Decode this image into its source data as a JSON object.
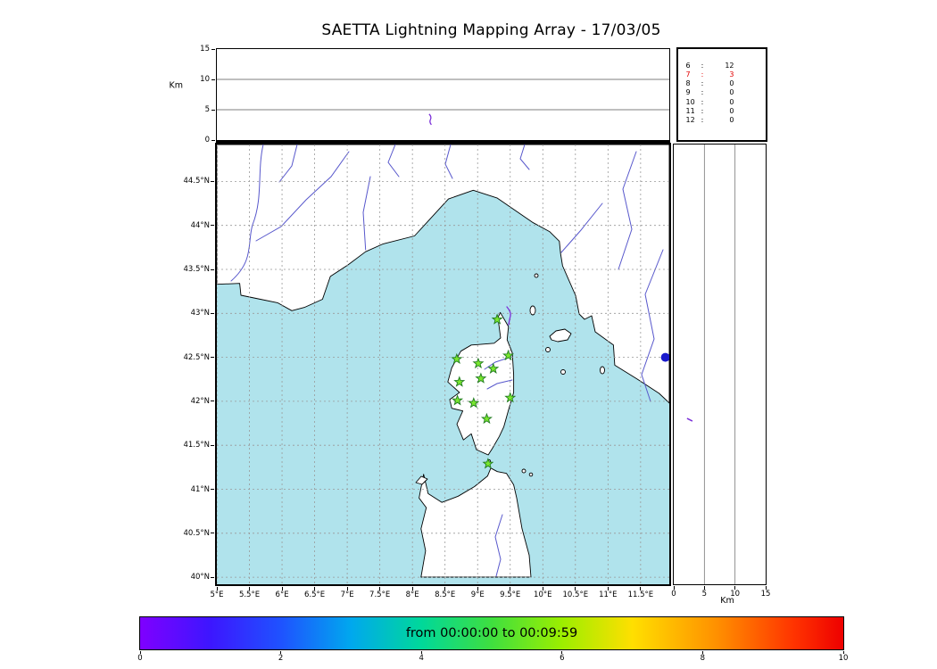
{
  "title": "SAETTA Lightning Mapping Array - 17/03/05",
  "chart_data": {
    "type": "map",
    "title": "SAETTA Lightning Mapping Array - 17/03/05",
    "colorbar": {
      "label": "from 00:00:00 to 00:09:59",
      "ticks": [
        0,
        2,
        4,
        6,
        8,
        10
      ],
      "range": [
        0,
        10
      ],
      "gradient_stops": [
        "#7f00ff 0%",
        "#3d16ff 10%",
        "#1f52ff 20%",
        "#00a8ee 30%",
        "#00d89a 40%",
        "#3fdf3f 50%",
        "#9cee00 60%",
        "#ffdf00 70%",
        "#ff9000 82%",
        "#ff3300 93%",
        "#ee0000 100%"
      ]
    },
    "altitude_panel": {
      "ylabel": "Km",
      "yticks": [
        0,
        5,
        10,
        15
      ],
      "ylim": [
        0,
        15
      ],
      "gridlines": [
        5,
        10
      ],
      "source_mark": {
        "lon": 8.27,
        "alt_km": 3.4
      }
    },
    "right_panel": {
      "xlabel": "Km",
      "xticks": [
        0,
        5,
        10,
        15
      ],
      "xlim": [
        0,
        15
      ],
      "gridlines": [
        5,
        10
      ],
      "source_mark": {
        "lat": 41.79,
        "alt_km": 2.6
      }
    },
    "map_panel": {
      "lon_range": [
        5.0,
        11.94
      ],
      "lat_range": [
        39.92,
        44.92
      ],
      "lon_ticks": [
        5,
        5.5,
        6,
        6.5,
        7,
        7.5,
        8,
        8.5,
        9,
        9.5,
        10,
        10.5,
        11,
        11.5
      ],
      "lon_tick_labels": [
        "5°E",
        "5.5°E",
        "6°E",
        "6.5°E",
        "7°E",
        "7.5°E",
        "8°E",
        "8.5°E",
        "9°E",
        "9.5°E",
        "10°E",
        "10.5°E",
        "11°E",
        "11.5°E"
      ],
      "lat_ticks": [
        40,
        40.5,
        41,
        41.5,
        42,
        42.5,
        43,
        43.5,
        44,
        44.5
      ],
      "lat_tick_labels": [
        "40°N",
        "40.5°N",
        "41°N",
        "41.5°N",
        "42°N",
        "42.5°N",
        "43°N",
        "43.5°N",
        "44°N",
        "44.5°N"
      ],
      "stations_lonlat": [
        [
          9.3,
          42.93
        ],
        [
          8.68,
          42.48
        ],
        [
          9.01,
          42.43
        ],
        [
          9.47,
          42.52
        ],
        [
          9.24,
          42.37
        ],
        [
          8.72,
          42.22
        ],
        [
          9.05,
          42.26
        ],
        [
          9.5,
          42.04
        ],
        [
          8.69,
          42.01
        ],
        [
          8.94,
          41.98
        ],
        [
          9.14,
          41.8
        ],
        [
          9.16,
          41.29
        ]
      ],
      "source_dot": {
        "lon": 11.88,
        "lat": 42.5
      }
    },
    "station_counts": [
      {
        "id": "6",
        "count": 12,
        "active": false
      },
      {
        "id": "7",
        "count": 3,
        "active": true
      },
      {
        "id": "8",
        "count": 0,
        "active": false
      },
      {
        "id": "9",
        "count": 0,
        "active": false
      },
      {
        "id": "10",
        "count": 0,
        "active": false
      },
      {
        "id": "11",
        "count": 0,
        "active": false
      },
      {
        "id": "12",
        "count": 0,
        "active": false
      }
    ]
  },
  "colors": {
    "sea": "#b0e3ec",
    "land": "#ffffff",
    "coast": "#000000",
    "river": "#5858cc",
    "grid": "#999999",
    "star_fill": "#79e62e",
    "star_edge": "#1f7a1f",
    "lightning": "#7b2fd8",
    "source_dot": "#1a1acc",
    "active_station_text": "#e10000"
  }
}
